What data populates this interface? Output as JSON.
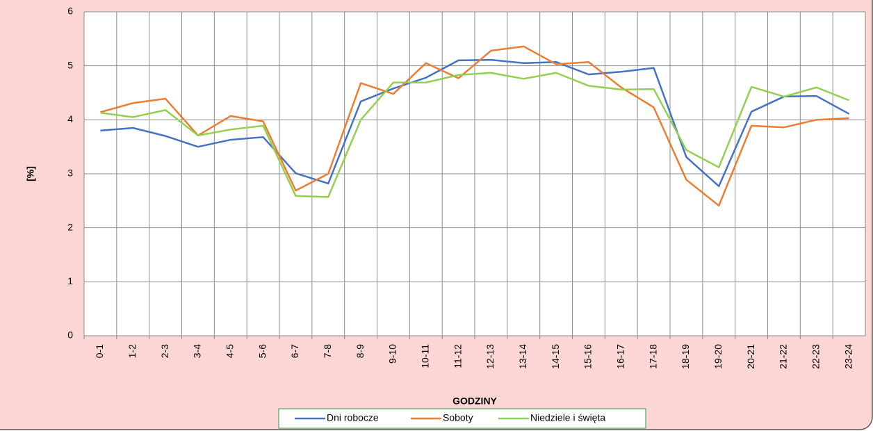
{
  "chart_data": {
    "type": "line",
    "x_label": "GODZINY",
    "y_label": "[%]",
    "categories": [
      "0-1",
      "1-2",
      "2-3",
      "3-4",
      "4-5",
      "5-6",
      "6-7",
      "7-8",
      "8-9",
      "9-10",
      "10-11",
      "11-12",
      "12-13",
      "13-14",
      "14-15",
      "15-16",
      "16-17",
      "17-18",
      "18-19",
      "19-20",
      "20-21",
      "21-22",
      "22-23",
      "23-24"
    ],
    "series": [
      {
        "name": "Dni robocze",
        "color": "#4472c4",
        "values": [
          3.8,
          3.85,
          3.7,
          3.5,
          3.63,
          3.68,
          3.01,
          2.82,
          4.34,
          4.58,
          4.78,
          5.1,
          5.11,
          5.05,
          5.07,
          4.84,
          4.89,
          4.96,
          3.31,
          2.77,
          4.15,
          4.43,
          4.44,
          4.11
        ]
      },
      {
        "name": "Soboty",
        "color": "#ed7d31",
        "values": [
          4.14,
          4.31,
          4.39,
          3.71,
          4.07,
          3.97,
          2.69,
          3.0,
          4.68,
          4.48,
          5.05,
          4.77,
          5.28,
          5.36,
          5.03,
          5.07,
          4.6,
          4.23,
          2.89,
          2.41,
          3.89,
          3.86,
          4.0,
          4.03
        ]
      },
      {
        "name": "Niedziele i święta",
        "color": "#92d050",
        "values": [
          4.13,
          4.05,
          4.18,
          3.71,
          3.82,
          3.89,
          2.59,
          2.57,
          4.0,
          4.69,
          4.69,
          4.83,
          4.87,
          4.76,
          4.87,
          4.63,
          4.56,
          4.57,
          3.44,
          3.12,
          4.61,
          4.43,
          4.6,
          4.36
        ]
      }
    ],
    "ylim": [
      0,
      6
    ],
    "yticks": [
      0,
      1,
      2,
      3,
      4,
      5,
      6
    ],
    "grid": true
  }
}
